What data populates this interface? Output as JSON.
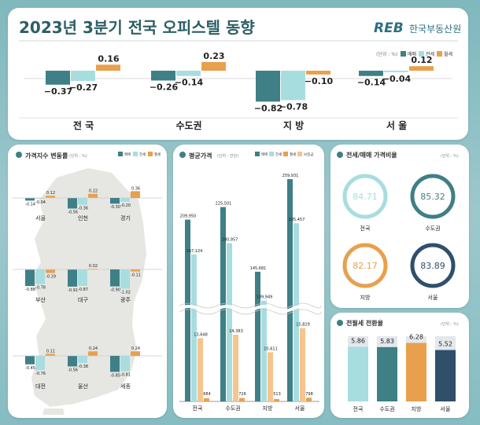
{
  "header": {
    "title": "2023년 3분기 전국 오피스텔 동향",
    "brand_mark": "REB",
    "brand_name": "한국부동산원"
  },
  "colors": {
    "sale": "#3f7f86",
    "jeonse": "#a8dde0",
    "monthly": "#e8a04c",
    "deposit": "#f6c48d",
    "navy": "#2f4f6b",
    "teal_dark": "#3f7f86"
  },
  "legend": {
    "unit_pct": "(단위 : %)",
    "unit_won": "(단위 : 만원)",
    "sale": "매매",
    "jeonse": "전세",
    "monthly": "월세",
    "deposit": "보증금"
  },
  "chart_data": [
    {
      "id": "top-summary",
      "type": "bar",
      "title": "2023년 3분기 전국 오피스텔 동향",
      "categories": [
        "전 국",
        "수도권",
        "지 방",
        "서 울"
      ],
      "series": [
        {
          "name": "매매",
          "values": [
            -0.37,
            -0.26,
            -0.82,
            -0.14
          ]
        },
        {
          "name": "전세",
          "values": [
            -0.27,
            -0.14,
            -0.78,
            -0.04
          ]
        },
        {
          "name": "월세",
          "values": [
            0.16,
            0.23,
            -0.1,
            0.12
          ]
        }
      ],
      "unit": "%"
    },
    {
      "id": "regional-index",
      "type": "bar",
      "title": "가격지수 변동률",
      "categories": [
        "서울",
        "인천",
        "경기",
        "부산",
        "대구",
        "광주",
        "대전",
        "울산",
        "세종"
      ],
      "series": [
        {
          "name": "매매",
          "values": [
            -0.14,
            -0.56,
            -0.3,
            -0.88,
            -0.91,
            -0.9,
            -0.45,
            -0.56,
            -0.85
          ]
        },
        {
          "name": "전세",
          "values": [
            -0.04,
            -0.36,
            -0.2,
            -0.78,
            -0.87,
            -1.02,
            -0.76,
            -0.38,
            -0.81
          ]
        },
        {
          "name": "월세",
          "values": [
            0.12,
            0.22,
            0.36,
            -0.19,
            0.02,
            -0.11,
            0.11,
            0.24,
            0.24
          ]
        }
      ],
      "value_labels": [
        [
          "-0.14",
          "-0.04",
          "0.12"
        ],
        [
          "-0.56",
          "-0.36",
          "0.22"
        ],
        [
          "-0.30",
          "-0.20",
          "0.36"
        ],
        [
          "-0.88",
          "-0.78",
          "-0.19"
        ],
        [
          "-0.91",
          "-0.87",
          "0.02"
        ],
        [
          "-0.90",
          "-1.02",
          "-0.11"
        ],
        [
          "-0.45",
          "-0.76",
          "0.11"
        ],
        [
          "-0.56",
          "-0.38",
          "0.24"
        ],
        [
          "-0.85",
          "-0.81",
          "0.24"
        ]
      ],
      "unit": "%"
    },
    {
      "id": "avg-price",
      "type": "bar",
      "title": "평균가격",
      "categories": [
        "전국",
        "수도권",
        "지방",
        "서울"
      ],
      "series": [
        {
          "name": "매매",
          "values": [
            209950,
            225501,
            145681,
            259931
          ],
          "labels": [
            "209,950",
            "225,501",
            "145,681",
            "259,931"
          ]
        },
        {
          "name": "전세",
          "values": [
            167124,
            180957,
            109949,
            205457
          ],
          "labels": [
            "167,124",
            "180,957",
            "109,949",
            "205,457"
          ]
        },
        {
          "name": "보증금",
          "values": [
            13648,
            14383,
            10611,
            15829
          ],
          "labels": [
            "13,648",
            "14,383",
            "10,611",
            "15,829"
          ]
        },
        {
          "name": "월세",
          "values": [
            684,
            726,
            513,
            798
          ],
          "labels": [
            "684",
            "726",
            "513",
            "798"
          ]
        }
      ],
      "unit": "만원",
      "axis_break": true
    },
    {
      "id": "jeonse-ratio",
      "type": "pie",
      "title": "전세/매매 가격비율",
      "categories": [
        "전국",
        "수도권",
        "지방",
        "서울"
      ],
      "values": [
        84.71,
        85.32,
        82.17,
        83.89
      ],
      "labels": [
        "84.71",
        "85.32",
        "82.17",
        "83.89"
      ],
      "unit": "%"
    },
    {
      "id": "conversion-rate",
      "type": "bar",
      "title": "전월세 전환율",
      "categories": [
        "전국",
        "수도권",
        "지방",
        "서울"
      ],
      "values": [
        5.86,
        5.83,
        6.28,
        5.52
      ],
      "labels": [
        "5.86",
        "5.83",
        "6.28",
        "5.52"
      ],
      "unit": "%"
    }
  ]
}
